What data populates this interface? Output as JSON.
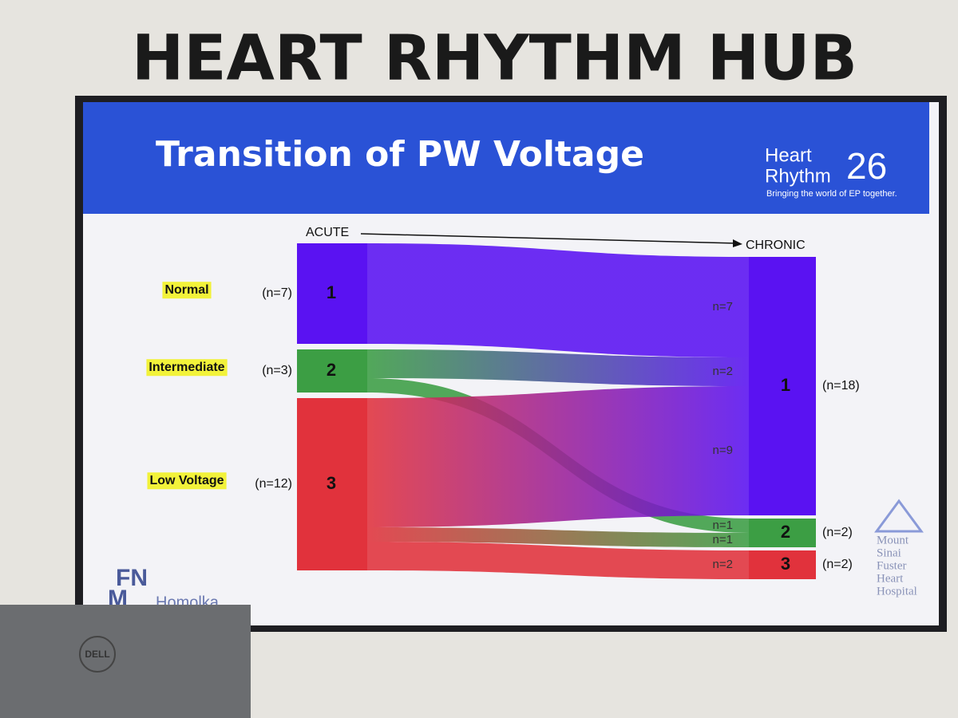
{
  "banner": "HEART RHYTHM HUB",
  "logo": {
    "line1": "Heart",
    "line2": "Rhythm",
    "number": "26",
    "tagline": "Bringing the world of EP together."
  },
  "chart_data": {
    "type": "sankey",
    "title": "Transition of PW Voltage",
    "stages": [
      "ACUTE",
      "CHRONIC"
    ],
    "acute_nodes": [
      {
        "row_label": "Normal",
        "label": "1",
        "value": 7,
        "value_label": "(n=7)",
        "color": "#5a12f2",
        "flows": [
          {
            "to": "1",
            "value": 7,
            "value_label": "n=7"
          }
        ]
      },
      {
        "row_label": "Intermediate",
        "label": "2",
        "value": 3,
        "value_label": "(n=3)",
        "color": "#3c9e44",
        "flows": [
          {
            "to": "1",
            "value": 2,
            "value_label": "n=2"
          },
          {
            "to": "2",
            "value": 1,
            "value_label": "n=1"
          }
        ]
      },
      {
        "row_label": "Low Voltage",
        "label": "3",
        "value": 12,
        "value_label": "(n=12)",
        "color": "#e1323c",
        "flows": [
          {
            "to": "1",
            "value": 9,
            "value_label": "n=9"
          },
          {
            "to": "2",
            "value": 1,
            "value_label": "n=1"
          },
          {
            "to": "3",
            "value": 2,
            "value_label": "n=2"
          }
        ]
      }
    ],
    "chronic_nodes": [
      {
        "label": "1",
        "value": 18,
        "value_label": "(n=18)",
        "color": "#5a12f2"
      },
      {
        "label": "2",
        "value": 2,
        "value_label": "(n=2)",
        "color": "#3c9e44"
      },
      {
        "label": "3",
        "value": 2,
        "value_label": "(n=2)",
        "color": "#e1323c"
      }
    ]
  },
  "footer_left": {
    "line1": "FN",
    "line2": "M",
    "name": "Homolka"
  },
  "footer_right": [
    "Mount",
    "Sinai",
    "Fuster",
    "Heart",
    "Hospital"
  ],
  "laptop_brand": "DELL"
}
